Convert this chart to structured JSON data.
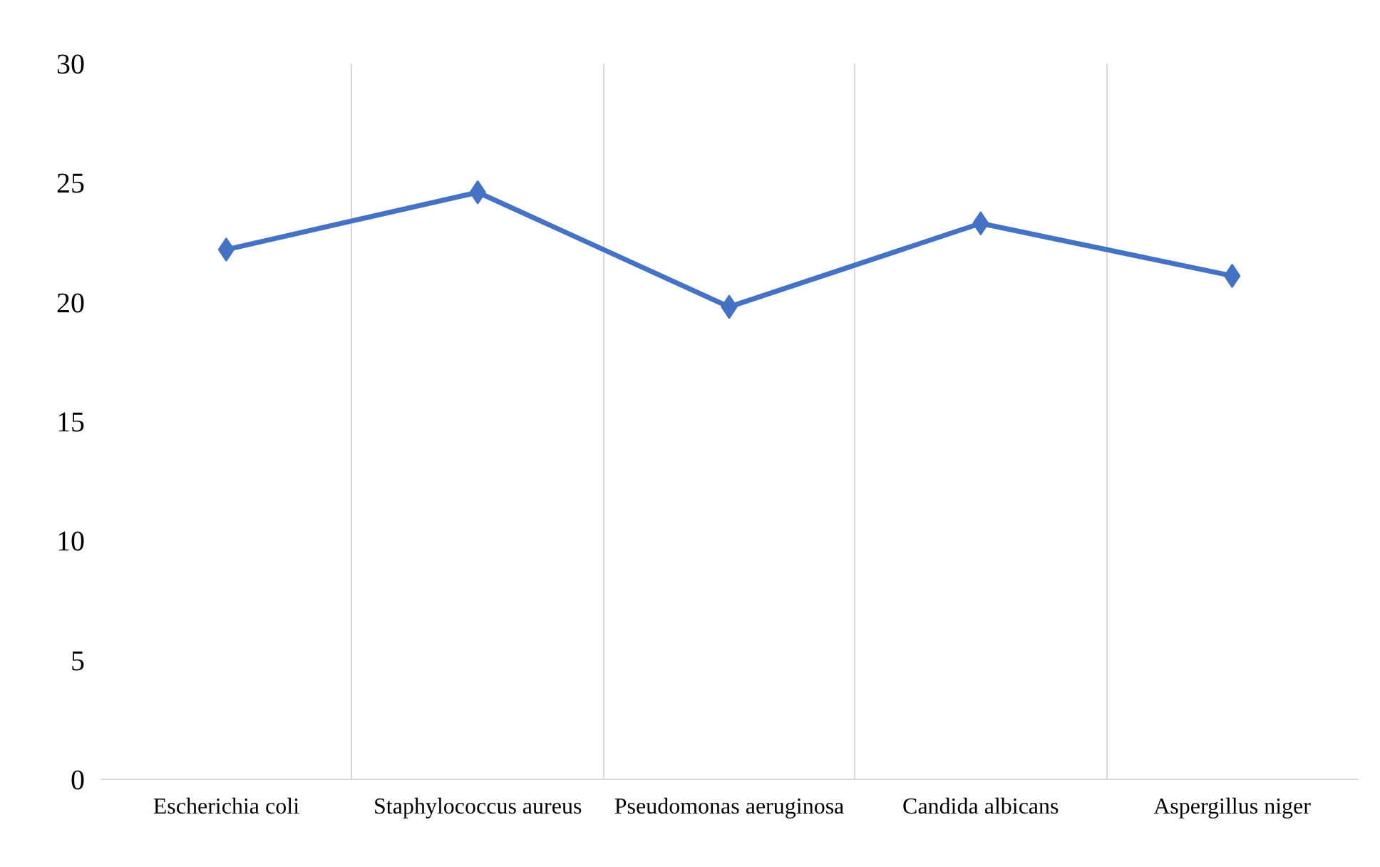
{
  "chart_data": {
    "type": "line",
    "categories": [
      "Escherichia coli",
      "Staphylococcus aureus",
      "Pseudomonas aeruginosa",
      "Candida albicans",
      "Aspergillus niger"
    ],
    "series": [
      {
        "color": "#4472c4",
        "values": [
          22.2,
          24.6,
          19.8,
          23.3,
          21.1
        ]
      }
    ],
    "ylim": [
      0,
      30
    ],
    "yticks": [
      0,
      5,
      10,
      15,
      20,
      25,
      30
    ],
    "grid": "x",
    "marker": "diamond",
    "line_style": "solid"
  }
}
